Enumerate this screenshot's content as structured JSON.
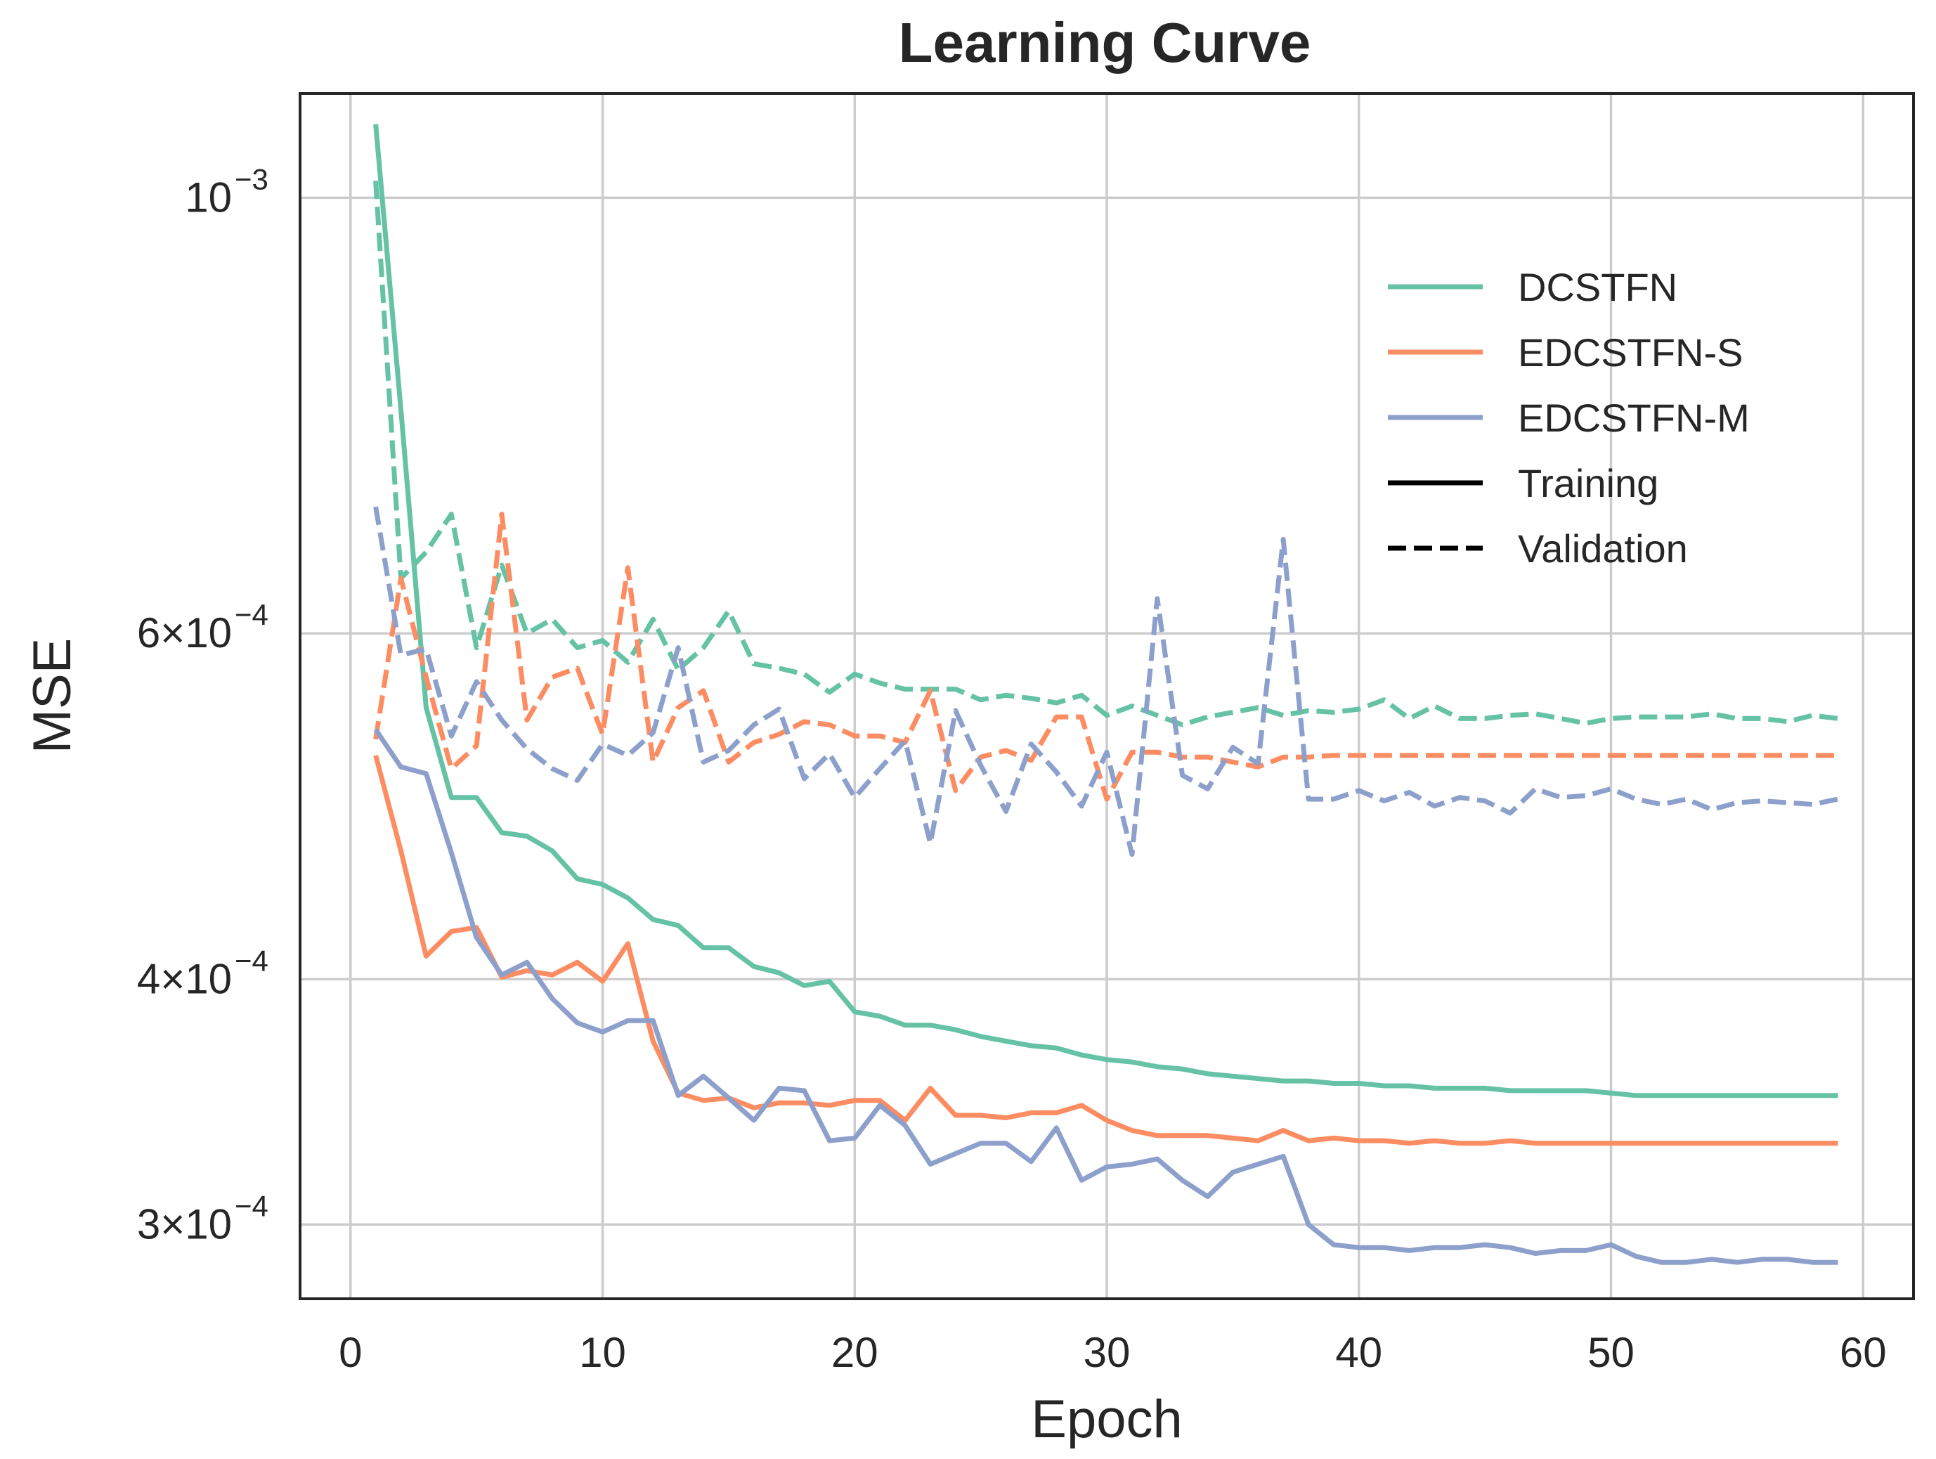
{
  "chart_data": {
    "type": "line",
    "title": "Learning Curve",
    "xlabel": "Epoch",
    "ylabel": "MSE",
    "xlim": [
      -2,
      62
    ],
    "ylim": [
      0.000275,
      0.00113
    ],
    "yscale": "log",
    "grid": true,
    "legend_position": "upper-right",
    "xticks": [
      0,
      10,
      20,
      30,
      40,
      50,
      60
    ],
    "xtick_labels": [
      "0",
      "10",
      "20",
      "30",
      "40",
      "50",
      "60"
    ],
    "yticks": [
      {
        "value": 0.001,
        "mantissa": "",
        "base": "10",
        "exponent": "−3"
      },
      {
        "value": 0.0006,
        "mantissa": "6×",
        "base": "10",
        "exponent": "−4"
      },
      {
        "value": 0.0004,
        "mantissa": "4×",
        "base": "10",
        "exponent": "−4"
      },
      {
        "value": 0.0003,
        "mantissa": "3×",
        "base": "10",
        "exponent": "−4"
      }
    ],
    "series_colors": {
      "DCSTFN": "#66c2a5",
      "EDCSTFN-S": "#fc8d62",
      "EDCSTFN-M": "#8da0cb"
    },
    "legend": [
      {
        "label": "DCSTFN",
        "color": "#66c2a5",
        "style": "solid"
      },
      {
        "label": "EDCSTFN-S",
        "color": "#fc8d62",
        "style": "solid"
      },
      {
        "label": "EDCSTFN-M",
        "color": "#8da0cb",
        "style": "solid"
      },
      {
        "label": "Training",
        "color": "#000000",
        "style": "solid"
      },
      {
        "label": "Validation",
        "color": "#000000",
        "style": "dashed"
      }
    ],
    "x": [
      1,
      2,
      3,
      4,
      5,
      6,
      7,
      8,
      9,
      10,
      11,
      12,
      13,
      14,
      15,
      16,
      17,
      18,
      19,
      20,
      21,
      22,
      23,
      24,
      25,
      26,
      27,
      28,
      29,
      30,
      31,
      32,
      33,
      34,
      35,
      36,
      37,
      38,
      39,
      40,
      41,
      42,
      43,
      44,
      45,
      46,
      47,
      48,
      49,
      50,
      51,
      52,
      53,
      54,
      55,
      56,
      57,
      58,
      59
    ],
    "series": [
      {
        "name": "DCSTFN",
        "kind": "Training",
        "color": "#66c2a5",
        "dash": "solid",
        "values": [
          0.00109,
          0.00078,
          0.00055,
          0.000495,
          0.000495,
          0.000475,
          0.000473,
          0.000465,
          0.00045,
          0.000447,
          0.00044,
          0.000429,
          0.000426,
          0.000415,
          0.000415,
          0.000406,
          0.000403,
          0.000397,
          0.000399,
          0.000385,
          0.000383,
          0.000379,
          0.000379,
          0.000377,
          0.000374,
          0.000372,
          0.00037,
          0.000369,
          0.000366,
          0.000364,
          0.000363,
          0.000361,
          0.00036,
          0.000358,
          0.000357,
          0.000356,
          0.000355,
          0.000355,
          0.000354,
          0.000354,
          0.000353,
          0.000353,
          0.000352,
          0.000352,
          0.000352,
          0.000351,
          0.000351,
          0.000351,
          0.000351,
          0.00035,
          0.000349,
          0.000349,
          0.000349,
          0.000349,
          0.000349,
          0.000349,
          0.000349,
          0.000349,
          0.000349
        ]
      },
      {
        "name": "DCSTFN",
        "kind": "Validation",
        "color": "#66c2a5",
        "dash": "dashed",
        "values": [
          0.00102,
          0.00064,
          0.00066,
          0.00069,
          0.00059,
          0.00065,
          0.0006,
          0.00061,
          0.00059,
          0.000595,
          0.00058,
          0.00061,
          0.000575,
          0.00059,
          0.000616,
          0.000579,
          0.000576,
          0.000572,
          0.00056,
          0.000572,
          0.000566,
          0.000562,
          0.000562,
          0.000562,
          0.000555,
          0.000558,
          0.000556,
          0.000553,
          0.000558,
          0.000545,
          0.000551,
          0.000545,
          0.000539,
          0.000544,
          0.000547,
          0.00055,
          0.000545,
          0.000548,
          0.000547,
          0.000549,
          0.000555,
          0.000543,
          0.000551,
          0.000543,
          0.000543,
          0.000545,
          0.000546,
          0.000543,
          0.00054,
          0.000543,
          0.000544,
          0.000544,
          0.000544,
          0.000546,
          0.000543,
          0.000543,
          0.000541,
          0.000545,
          0.000543
        ]
      },
      {
        "name": "EDCSTFN-S",
        "kind": "Training",
        "color": "#fc8d62",
        "dash": "solid",
        "values": [
          0.00052,
          0.000465,
          0.000411,
          0.000423,
          0.000425,
          0.000401,
          0.000404,
          0.000402,
          0.000408,
          0.000399,
          0.000417,
          0.000372,
          0.00035,
          0.000347,
          0.000348,
          0.000344,
          0.000346,
          0.000346,
          0.000345,
          0.000347,
          0.000347,
          0.000339,
          0.000352,
          0.000341,
          0.000341,
          0.00034,
          0.000342,
          0.000342,
          0.000345,
          0.000339,
          0.000335,
          0.000333,
          0.000333,
          0.000333,
          0.000332,
          0.000331,
          0.000335,
          0.000331,
          0.000332,
          0.000331,
          0.000331,
          0.00033,
          0.000331,
          0.00033,
          0.00033,
          0.000331,
          0.00033,
          0.00033,
          0.00033,
          0.00033,
          0.00033,
          0.00033,
          0.00033,
          0.00033,
          0.00033,
          0.00033,
          0.00033,
          0.00033,
          0.00033
        ]
      },
      {
        "name": "EDCSTFN-S",
        "kind": "Validation",
        "color": "#fc8d62",
        "dash": "dashed",
        "values": [
          0.00053,
          0.00064,
          0.00057,
          0.000512,
          0.000526,
          0.00069,
          0.000542,
          0.00057,
          0.000576,
          0.000533,
          0.000648,
          0.000516,
          0.00055,
          0.000561,
          0.000516,
          0.000528,
          0.000533,
          0.000541,
          0.000539,
          0.000532,
          0.000532,
          0.000528,
          0.000561,
          0.000499,
          0.000519,
          0.000523,
          0.000517,
          0.000544,
          0.000544,
          0.000494,
          0.000522,
          0.000522,
          0.000519,
          0.000519,
          0.000516,
          0.000513,
          0.000519,
          0.000519,
          0.00052,
          0.00052,
          0.00052,
          0.00052,
          0.00052,
          0.00052,
          0.00052,
          0.00052,
          0.00052,
          0.00052,
          0.00052,
          0.00052,
          0.00052,
          0.00052,
          0.00052,
          0.00052,
          0.00052,
          0.00052,
          0.00052,
          0.00052,
          0.00052
        ]
      },
      {
        "name": "EDCSTFN-M",
        "kind": "Training",
        "color": "#8da0cb",
        "dash": "solid",
        "values": [
          0.000536,
          0.000513,
          0.000509,
          0.000464,
          0.00042,
          0.000402,
          0.000408,
          0.000391,
          0.00038,
          0.000376,
          0.000381,
          0.000381,
          0.000349,
          0.000357,
          0.000348,
          0.000339,
          0.000352,
          0.000351,
          0.000331,
          0.000332,
          0.000345,
          0.000337,
          0.000322,
          0.000326,
          0.00033,
          0.00033,
          0.000323,
          0.000336,
          0.000316,
          0.000321,
          0.000322,
          0.000324,
          0.000316,
          0.00031,
          0.000319,
          0.000322,
          0.000325,
          0.0003,
          0.000293,
          0.000292,
          0.000292,
          0.000291,
          0.000292,
          0.000292,
          0.000293,
          0.000292,
          0.00029,
          0.000291,
          0.000291,
          0.000293,
          0.000289,
          0.000287,
          0.000287,
          0.000288,
          0.000287,
          0.000288,
          0.000288,
          0.000287,
          0.000287
        ]
      },
      {
        "name": "EDCSTFN-M",
        "kind": "Validation",
        "color": "#8da0cb",
        "dash": "dashed",
        "values": [
          0.000696,
          0.000585,
          0.000589,
          0.000532,
          0.000567,
          0.000542,
          0.000524,
          0.000512,
          0.000505,
          0.000527,
          0.00052,
          0.000534,
          0.00059,
          0.000516,
          0.000523,
          0.000539,
          0.000549,
          0.000506,
          0.000521,
          0.000495,
          0.000512,
          0.000529,
          0.000469,
          0.000548,
          0.000514,
          0.000487,
          0.000527,
          0.00051,
          0.00049,
          0.000522,
          0.000463,
          0.000625,
          0.000508,
          0.0005,
          0.000525,
          0.000515,
          0.00067,
          0.000494,
          0.000494,
          0.000499,
          0.000493,
          0.000498,
          0.00049,
          0.000495,
          0.000493,
          0.000486,
          0.0005,
          0.000495,
          0.000496,
          0.0005,
          0.000494,
          0.000491,
          0.000494,
          0.000488,
          0.000492,
          0.000493,
          0.000492,
          0.000491,
          0.000494
        ]
      }
    ]
  }
}
